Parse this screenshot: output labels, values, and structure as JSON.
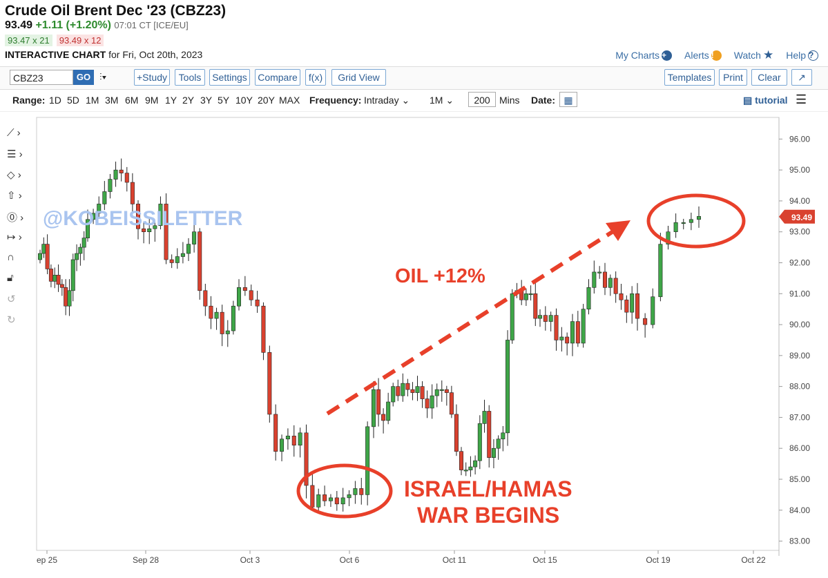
{
  "header": {
    "title": "Crude Oil Brent Dec '23 (CBZ23)",
    "last": "93.49",
    "change": "+1.11 (+1.20%)",
    "time": "07:01 CT [ICE/EU]",
    "bid": "93.47 x 21",
    "ask": "93.49 x 12",
    "chart_label": "INTERACTIVE CHART",
    "chart_date": "for Fri, Oct 20th, 2023"
  },
  "top_links": {
    "my_charts": "My Charts",
    "alerts": "Alerts",
    "watch": "Watch",
    "help": "Help"
  },
  "toolbar": {
    "symbol": "CBZ23",
    "go": "GO",
    "study": "+Study",
    "tools": "Tools",
    "settings": "Settings",
    "compare": "Compare",
    "fx": "f(x)",
    "grid_view": "Grid View",
    "templates": "Templates",
    "print": "Print",
    "clear": "Clear"
  },
  "range_bar": {
    "range_label": "Range:",
    "ranges": [
      "1D",
      "5D",
      "1M",
      "3M",
      "6M",
      "9M",
      "1Y",
      "2Y",
      "3Y",
      "5Y",
      "10Y",
      "20Y",
      "MAX"
    ],
    "frequency_label": "Frequency:",
    "frequency": "Intraday",
    "interval": "1M",
    "mins_value": "200",
    "mins": "Mins",
    "date_label": "Date:",
    "tutorial": "tutorial"
  },
  "watermark": "@KOBEISSILETTER",
  "annotations": {
    "oil": "OIL +12%",
    "war_line1": "ISRAEL/HAMAS",
    "war_line2": "WAR BEGINS"
  },
  "colors": {
    "up": "#3fa648",
    "down": "#d9412f",
    "annotation": "#e8402a",
    "price_tag": "#d9412f",
    "link": "#3a6ea5"
  },
  "chart_data": {
    "type": "candlestick",
    "ylim": [
      82.7,
      96.7
    ],
    "y_ticks": [
      "96.00",
      "95.00",
      "94.00",
      "93.00",
      "92.00",
      "91.00",
      "90.00",
      "89.00",
      "88.00",
      "87.00",
      "86.00",
      "85.00",
      "84.00",
      "83.00"
    ],
    "x_ticks": [
      "ep 25",
      "Sep 28",
      "Oct 3",
      "Oct 6",
      "Oct 11",
      "Oct 15",
      "Oct 19",
      "Oct 22"
    ],
    "last_price_tag": "93.49",
    "closes": [
      92.3,
      92.6,
      91.8,
      91.4,
      91.6,
      91.3,
      91.2,
      90.6,
      91.1,
      92.1,
      92.3,
      92.5,
      92.8,
      93.4,
      93.6,
      93.9,
      94.3,
      94.7,
      95.0,
      94.9,
      94.6,
      93.9,
      93.1,
      93.0,
      93.1,
      93.2,
      93.9,
      92.1,
      92.0,
      92.2,
      92.3,
      92.6,
      93.0,
      91.1,
      90.6,
      90.2,
      90.4,
      89.7,
      89.8,
      90.6,
      91.2,
      91.1,
      90.8,
      90.6,
      89.1,
      87.1,
      85.9,
      86.3,
      86.4,
      86.1,
      86.5,
      84.8,
      84.1,
      84.5,
      84.3,
      84.4,
      84.2,
      84.4,
      84.5,
      84.7,
      84.5,
      86.7,
      87.9,
      87.1,
      86.9,
      87.5,
      88.0,
      87.7,
      88.1,
      87.9,
      87.8,
      88.0,
      87.6,
      87.3,
      87.7,
      87.9,
      87.9,
      87.8,
      87.1,
      85.9,
      85.3,
      85.3,
      85.4,
      85.6,
      86.8,
      87.2,
      85.7,
      86.0,
      86.3,
      86.5,
      89.5,
      91.0,
      91.1,
      90.8,
      91.0,
      91.0,
      90.2,
      90.3,
      90.1,
      90.3,
      89.5,
      89.6,
      89.4,
      90.1,
      89.4,
      90.5,
      91.2,
      91.7,
      91.7,
      91.2,
      91.5,
      91.0,
      90.8,
      90.4,
      91.0,
      90.2,
      90.0,
      90.9,
      92.6,
      93.0,
      93.3,
      93.3,
      93.4,
      93.5
    ]
  }
}
